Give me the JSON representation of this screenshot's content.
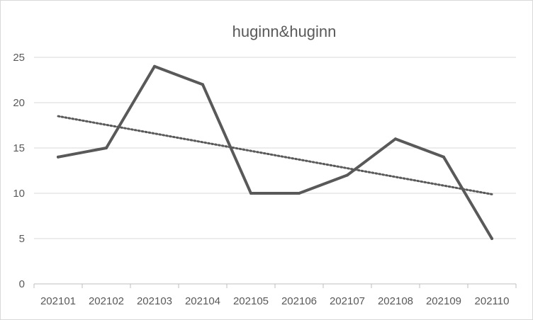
{
  "chart_data": {
    "type": "line",
    "title": "huginn&huginn",
    "xlabel": "",
    "ylabel": "",
    "categories": [
      "202101",
      "202102",
      "202103",
      "202104",
      "202105",
      "202106",
      "202107",
      "202108",
      "202109",
      "202110"
    ],
    "series": [
      {
        "values": [
          14,
          15,
          24,
          22,
          10,
          10,
          12,
          16,
          14,
          5
        ],
        "color": "#595959",
        "style": "solid"
      }
    ],
    "trendline": {
      "type": "linear",
      "style": "dotted",
      "color": "#595959"
    },
    "ylim": [
      0,
      25
    ],
    "yticks": [
      0,
      5,
      10,
      15,
      20,
      25
    ],
    "grid": true,
    "legend": "none"
  }
}
